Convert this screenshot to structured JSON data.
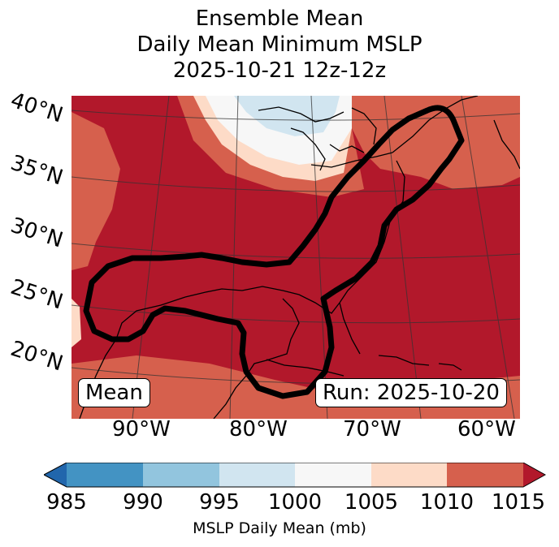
{
  "title": {
    "line1": "Ensemble Mean",
    "line2": "Daily Mean Minimum MSLP",
    "line3": "2025-10-21 12z-12z"
  },
  "lat_labels": [
    "40°N",
    "35°N",
    "30°N",
    "25°N",
    "20°N"
  ],
  "lon_labels": [
    "90°W",
    "80°W",
    "70°W",
    "60°W"
  ],
  "boxes": {
    "left": "Mean",
    "right": "Run: 2025-10-20"
  },
  "colorbar": {
    "ticks": [
      "985",
      "990",
      "995",
      "1000",
      "1005",
      "1010",
      "1015"
    ],
    "label": "MSLP Daily Mean (mb)",
    "colors": [
      "#2166ac",
      "#4393c3",
      "#92c5de",
      "#d1e5f0",
      "#f7f7f7",
      "#fddbc7",
      "#d6604d",
      "#b2182b"
    ]
  }
}
